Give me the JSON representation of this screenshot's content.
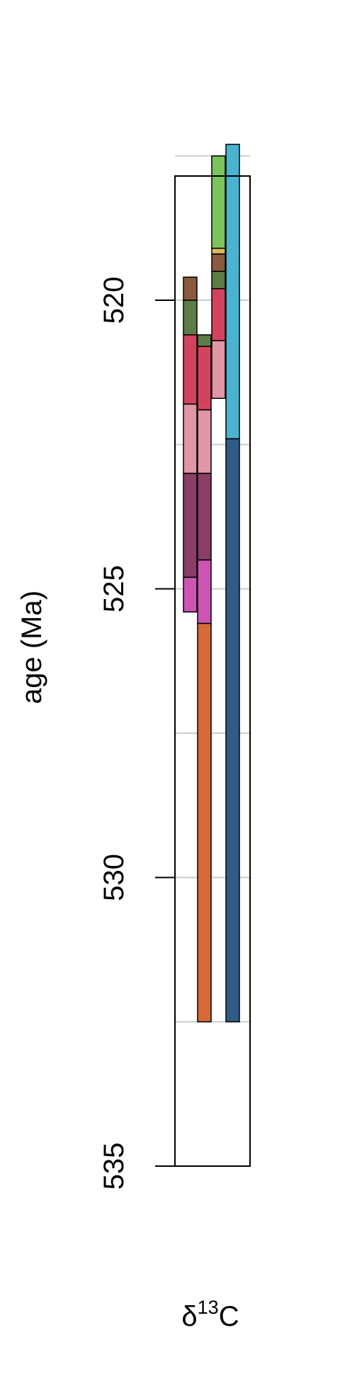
{
  "chart_data": {
    "type": "bar",
    "ylabel": "age (Ma)",
    "xlabel": {
      "base": "δ",
      "sup": "13",
      "tail": "C"
    },
    "ylim": [
      535,
      517
    ],
    "y_reversed": true,
    "yticks": [
      520,
      525,
      530,
      535
    ],
    "ygrid": [
      517.5,
      520,
      522.5,
      525,
      527.5,
      530,
      532.5
    ],
    "grid": true,
    "series": [
      {
        "column": 1,
        "segments": [
          {
            "from": 519.6,
            "to": 520.0,
            "color": "#8b5a3c"
          },
          {
            "from": 520.0,
            "to": 520.6,
            "color": "#5e7c45"
          },
          {
            "from": 520.6,
            "to": 521.8,
            "color": "#d4435e"
          },
          {
            "from": 521.8,
            "to": 523.0,
            "color": "#e096a6"
          },
          {
            "from": 523.0,
            "to": 524.8,
            "color": "#8a3d66"
          },
          {
            "from": 524.8,
            "to": 525.4,
            "color": "#cc55b3"
          }
        ]
      },
      {
        "column": 2,
        "segments": [
          {
            "from": 520.6,
            "to": 520.8,
            "color": "#5e7c45"
          },
          {
            "from": 520.8,
            "to": 521.9,
            "color": "#d4435e"
          },
          {
            "from": 521.9,
            "to": 523.0,
            "color": "#e096a6"
          },
          {
            "from": 523.0,
            "to": 524.5,
            "color": "#8a3d66"
          },
          {
            "from": 524.5,
            "to": 525.6,
            "color": "#cc55b3"
          },
          {
            "from": 525.6,
            "to": 532.5,
            "color": "#d86a3a"
          }
        ]
      },
      {
        "column": 3,
        "segments": [
          {
            "from": 517.5,
            "to": 519.1,
            "color": "#7dc35b"
          },
          {
            "from": 519.1,
            "to": 519.2,
            "color": "#d9b85a"
          },
          {
            "from": 519.2,
            "to": 519.5,
            "color": "#8b5a3c"
          },
          {
            "from": 519.5,
            "to": 519.8,
            "color": "#5e7c45"
          },
          {
            "from": 519.8,
            "to": 520.7,
            "color": "#d4435e"
          },
          {
            "from": 520.7,
            "to": 521.7,
            "color": "#e096a6"
          }
        ]
      },
      {
        "column": 4,
        "segments": [
          {
            "from": 517.3,
            "to": 522.4,
            "color": "#4ab3d0"
          },
          {
            "from": 522.4,
            "to": 532.5,
            "color": "#2e5c86"
          }
        ]
      }
    ]
  }
}
